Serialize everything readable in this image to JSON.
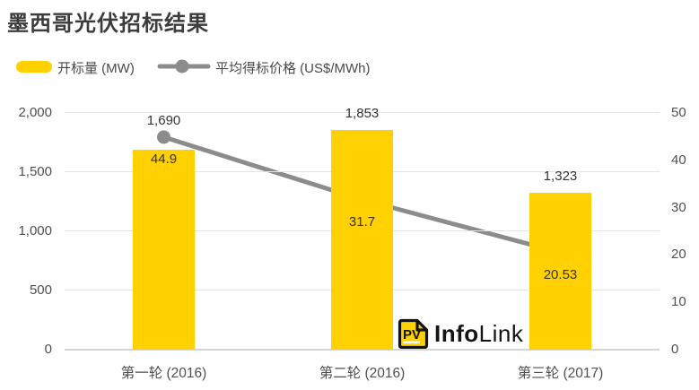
{
  "title": "墨西哥光伏招标结果",
  "colors": {
    "bar": "#FFD100",
    "line": "#8C8C8C",
    "label_text": "#333333",
    "axis_text": "#4f4f4f"
  },
  "legend": [
    {
      "label": "开标量 (MW)",
      "type": "bar",
      "color": "#FFD100"
    },
    {
      "label": "平均得标价格 (US$/MWh)",
      "type": "line",
      "color": "#8C8C8C"
    }
  ],
  "watermark": {
    "icon_text": "PV",
    "text_bold": "Info",
    "text_regular": "Link"
  },
  "chart_data": {
    "type": "bar+line combo (dual axis)",
    "title": "墨西哥光伏招标结果",
    "categories": [
      "第一轮 (2016)",
      "第二轮 (2016)",
      "第三轮 (2017)"
    ],
    "series": [
      {
        "name": "开标量 (MW)",
        "type": "bar",
        "axis": "left",
        "color": "#FFD100",
        "values": [
          1690,
          1853,
          1323
        ],
        "labels": [
          "1,690",
          "1,853",
          "1,323"
        ]
      },
      {
        "name": "平均得标价格 (US$/MWh)",
        "type": "line",
        "axis": "right",
        "color": "#8C8C8C",
        "values": [
          44.9,
          31.7,
          20.53
        ],
        "labels": [
          "44.9",
          "31.7",
          "20.53"
        ]
      }
    ],
    "left_axis": {
      "min": 0,
      "max": 2000,
      "ticks": [
        "2,000",
        "1,500",
        "1,000",
        "500",
        "0"
      ]
    },
    "right_axis": {
      "min": 0,
      "max": 50,
      "ticks": [
        "50",
        "40",
        "30",
        "20",
        "10",
        "0"
      ]
    },
    "grid": "horizontal gridlines aligned to left axis",
    "legend_position": "top-left"
  }
}
